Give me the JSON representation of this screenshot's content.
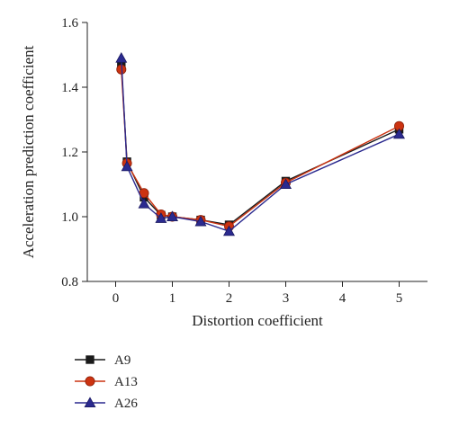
{
  "chart_data": {
    "type": "line",
    "title": "",
    "xlabel": "Distortion coefficient",
    "ylabel": "Acceleration prediction coefficient",
    "xlim": [
      -0.5,
      5.5
    ],
    "ylim": [
      0.8,
      1.6
    ],
    "xticks": [
      0,
      1,
      2,
      3,
      4,
      5
    ],
    "yticks": [
      0.8,
      1.0,
      1.2,
      1.4,
      1.6
    ],
    "xtick_labels": [
      "0",
      "1",
      "2",
      "3",
      "4",
      "5"
    ],
    "ytick_labels": [
      "0.8",
      "1.0",
      "1.2",
      "1.4",
      "1.6"
    ],
    "grid": false,
    "legend_position": "bottom-left, below plot",
    "x": [
      0.1,
      0.2,
      0.5,
      0.8,
      1.0,
      1.5,
      2.0,
      3.0,
      5.0
    ],
    "series": [
      {
        "name": "A9",
        "marker": "square",
        "color": "#1a1a1a",
        "values": [
          1.47,
          1.17,
          1.06,
          1.005,
          1.0,
          0.99,
          0.975,
          1.11,
          1.27
        ]
      },
      {
        "name": "A13",
        "marker": "circle",
        "color": "#cc3311",
        "values": [
          1.455,
          1.165,
          1.073,
          1.007,
          1.0,
          0.99,
          0.97,
          1.105,
          1.28
        ]
      },
      {
        "name": "A26",
        "marker": "triangle",
        "color": "#2b2a8f",
        "values": [
          1.49,
          1.155,
          1.04,
          0.995,
          1.0,
          0.985,
          0.955,
          1.1,
          1.255
        ]
      }
    ]
  }
}
